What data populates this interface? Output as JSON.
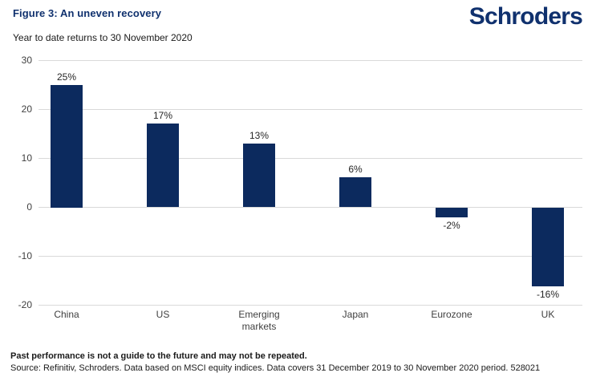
{
  "header": {
    "title": "Figure 3: An uneven recovery",
    "logo_text": "Schroders",
    "subtitle": "Year to date returns to 30 November 2020"
  },
  "chart_data": {
    "type": "bar",
    "title": "Year to date returns to 30 November 2020",
    "categories": [
      "China",
      "US",
      "Emerging markets",
      "Japan",
      "Eurozone",
      "UK"
    ],
    "values": [
      25,
      17,
      13,
      6,
      -2,
      -16
    ],
    "data_labels": [
      "25%",
      "17%",
      "13%",
      "6%",
      "-2%",
      "-16%"
    ],
    "xlabel": "",
    "ylabel": "",
    "ylim": [
      -20,
      30
    ],
    "yticks": [
      30,
      20,
      10,
      0,
      -10,
      -20
    ],
    "grid": true,
    "legend": "none",
    "bar_color": "#0c2a5e",
    "gridline_color": "#d9d9d9",
    "unit": "percent"
  },
  "footer": {
    "disclaimer": "Past performance is not a guide to the future and may not be repeated.",
    "source": "Source: Refinitiv, Schroders. Data based on MSCI equity indices. Data covers 31 December 2019 to 30 November 2020 period. 528021"
  },
  "colors": {
    "brand_navy": "#10316e",
    "bar_navy": "#0c2a5e",
    "gridline": "#d9d9d9"
  }
}
